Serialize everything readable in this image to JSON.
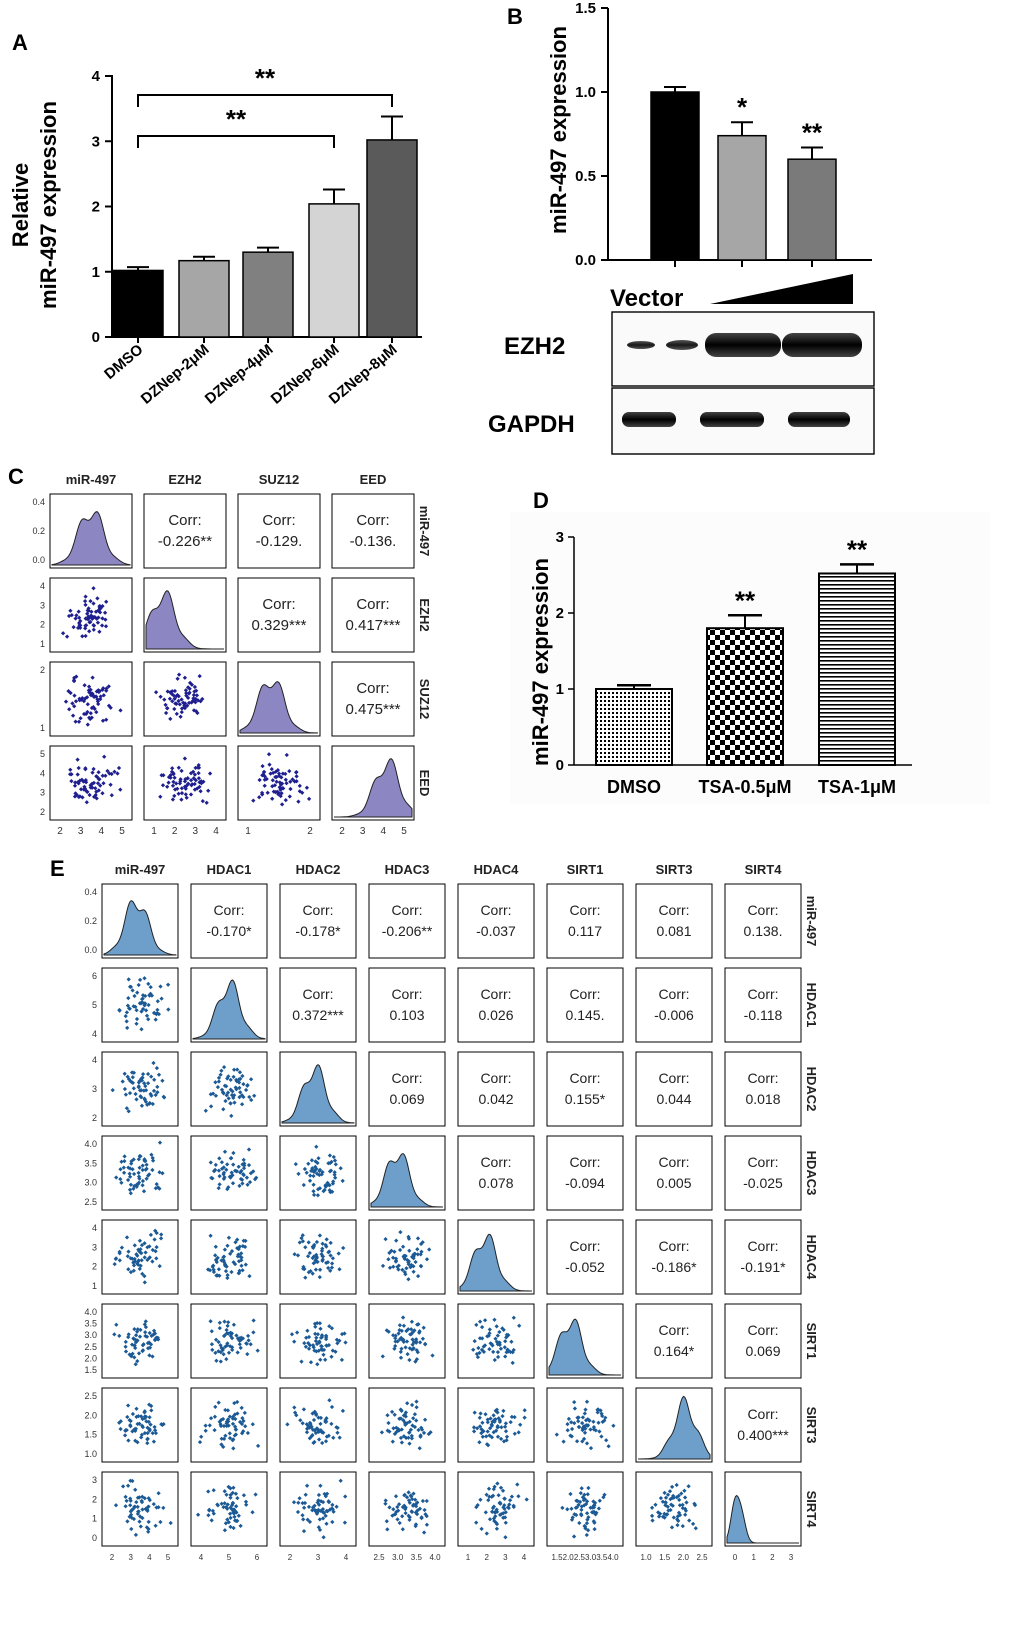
{
  "colors": {
    "black": "#000000",
    "density_c": "#8c86c2",
    "point_c": "#1f1f8f",
    "density_e": "#6e9fcb",
    "point_e": "#1c5a95"
  },
  "chart_data": [
    {
      "panel": "A",
      "type": "bar",
      "ylabel_line1": "Relative",
      "ylabel_line2": "miR-497 expression",
      "ylim": [
        0,
        4
      ],
      "yticks": [
        "0",
        "1",
        "2",
        "3",
        "4"
      ],
      "categories": [
        "DMSO",
        "DZNep-2μM",
        "DZNep-4μM",
        "DZNep-6μM",
        "DZNep-8μM"
      ],
      "values": [
        1.02,
        1.17,
        1.3,
        2.04,
        3.02
      ],
      "errors": [
        0.05,
        0.06,
        0.07,
        0.22,
        0.36
      ],
      "bar_colors": [
        "#000000",
        "#a6a6a6",
        "#808080",
        "#d4d4d4",
        "#5a5a5a"
      ],
      "significance": [
        {
          "from": 0,
          "to": 3,
          "label": "**"
        },
        {
          "from": 0,
          "to": 4,
          "label": "**"
        }
      ]
    },
    {
      "panel": "B",
      "type": "bar",
      "ylabel": "miR-497 expression",
      "ylim": [
        0,
        1.5
      ],
      "yticks": [
        "0.0",
        "0.5",
        "1.0",
        "1.5"
      ],
      "values": [
        1.0,
        0.74,
        0.6
      ],
      "errors": [
        0.03,
        0.08,
        0.07
      ],
      "bar_colors": [
        "#000000",
        "#a6a6a6",
        "#7a7a7a"
      ],
      "stars": [
        "",
        "*",
        "**"
      ],
      "x_label": "Vector",
      "blot_rows": [
        "EZH2",
        "GAPDH"
      ]
    },
    {
      "panel": "C",
      "type": "scatter-matrix",
      "variables": [
        "miR-497",
        "EZH2",
        "SUZ12",
        "EED"
      ],
      "corr_label": "Corr:",
      "correlations": [
        {
          "row": 0,
          "col": 1,
          "value": "-0.226**"
        },
        {
          "row": 0,
          "col": 2,
          "value": "-0.129."
        },
        {
          "row": 0,
          "col": 3,
          "value": "-0.136."
        },
        {
          "row": 1,
          "col": 2,
          "value": "0.329***"
        },
        {
          "row": 1,
          "col": 3,
          "value": "0.417***"
        },
        {
          "row": 2,
          "col": 3,
          "value": "0.475***"
        }
      ],
      "y_ticks": [
        [
          "0.4",
          "0.2",
          "0.0"
        ],
        [
          "4",
          "3",
          "2",
          "1"
        ],
        [
          "2",
          "1"
        ],
        [
          "5",
          "4",
          "3",
          "2"
        ]
      ],
      "x_ticks": [
        [
          "2",
          "3",
          "4",
          "5"
        ],
        [
          "1",
          "2",
          "3",
          "4"
        ],
        [
          "1",
          "2"
        ],
        [
          "2",
          "3",
          "4",
          "5"
        ]
      ],
      "density_peaks": [
        0.5,
        0.22,
        0.4,
        0.68
      ]
    },
    {
      "panel": "D",
      "type": "bar",
      "ylabel": "miR-497 expression",
      "ylim": [
        0,
        3
      ],
      "yticks": [
        "0",
        "1",
        "2",
        "3"
      ],
      "categories": [
        "DMSO",
        "TSA-0.5μM",
        "TSA-1μM"
      ],
      "values": [
        1.0,
        1.8,
        2.52
      ],
      "errors": [
        0.05,
        0.17,
        0.12
      ],
      "patterns": [
        "dots",
        "checker",
        "hlines"
      ],
      "stars": [
        "",
        "**",
        "**"
      ]
    },
    {
      "panel": "E",
      "type": "scatter-matrix",
      "variables": [
        "miR-497",
        "HDAC1",
        "HDAC2",
        "HDAC3",
        "HDAC4",
        "SIRT1",
        "SIRT3",
        "SIRT4"
      ],
      "corr_label": "Corr:",
      "correlations": [
        {
          "row": 0,
          "col": 1,
          "value": "-0.170*"
        },
        {
          "row": 0,
          "col": 2,
          "value": "-0.178*"
        },
        {
          "row": 0,
          "col": 3,
          "value": "-0.206**"
        },
        {
          "row": 0,
          "col": 4,
          "value": "-0.037"
        },
        {
          "row": 0,
          "col": 5,
          "value": "0.117"
        },
        {
          "row": 0,
          "col": 6,
          "value": "0.081"
        },
        {
          "row": 0,
          "col": 7,
          "value": "0.138."
        },
        {
          "row": 1,
          "col": 2,
          "value": "0.372***"
        },
        {
          "row": 1,
          "col": 3,
          "value": "0.103"
        },
        {
          "row": 1,
          "col": 4,
          "value": "0.026"
        },
        {
          "row": 1,
          "col": 5,
          "value": "0.145."
        },
        {
          "row": 1,
          "col": 6,
          "value": "-0.006"
        },
        {
          "row": 1,
          "col": 7,
          "value": "-0.118"
        },
        {
          "row": 2,
          "col": 3,
          "value": "0.069"
        },
        {
          "row": 2,
          "col": 4,
          "value": "0.042"
        },
        {
          "row": 2,
          "col": 5,
          "value": "0.155*"
        },
        {
          "row": 2,
          "col": 6,
          "value": "0.044"
        },
        {
          "row": 2,
          "col": 7,
          "value": "0.018"
        },
        {
          "row": 3,
          "col": 4,
          "value": "0.078"
        },
        {
          "row": 3,
          "col": 5,
          "value": "-0.094"
        },
        {
          "row": 3,
          "col": 6,
          "value": "0.005"
        },
        {
          "row": 3,
          "col": 7,
          "value": "-0.025"
        },
        {
          "row": 4,
          "col": 5,
          "value": "-0.052"
        },
        {
          "row": 4,
          "col": 6,
          "value": "-0.186*"
        },
        {
          "row": 4,
          "col": 7,
          "value": "-0.191*"
        },
        {
          "row": 5,
          "col": 6,
          "value": "0.164*"
        },
        {
          "row": 5,
          "col": 7,
          "value": "0.069"
        },
        {
          "row": 6,
          "col": 7,
          "value": "0.400***"
        }
      ],
      "y_ticks": [
        [
          "0.4",
          "0.2",
          "0.0"
        ],
        [
          "6",
          "5",
          "4"
        ],
        [
          "4",
          "3",
          "2"
        ],
        [
          "4.0",
          "3.5",
          "3.0",
          "2.5"
        ],
        [
          "4",
          "3",
          "2",
          "1"
        ],
        [
          "4.0",
          "3.5",
          "3.0",
          "2.5",
          "2.0",
          "1.5"
        ],
        [
          "2.5",
          "2.0",
          "1.5",
          "1.0"
        ],
        [
          "3",
          "2",
          "1",
          "0"
        ]
      ],
      "x_ticks": [
        [
          "2",
          "3",
          "4",
          "5"
        ],
        [
          "4",
          "5",
          "6"
        ],
        [
          "2",
          "3",
          "4"
        ],
        [
          "2.5",
          "3.0",
          "3.5",
          "4.0"
        ],
        [
          "1",
          "2",
          "3",
          "4"
        ],
        [
          "1.5",
          "2.0",
          "2.5",
          "3.0",
          "3.5",
          "4.0"
        ],
        [
          "1.0",
          "1.5",
          "2.0",
          "2.5"
        ],
        [
          "0",
          "1",
          "2",
          "3"
        ]
      ],
      "density_peaks": [
        0.45,
        0.5,
        0.45,
        0.37,
        0.35,
        0.3,
        0.65,
        0.15
      ]
    }
  ]
}
